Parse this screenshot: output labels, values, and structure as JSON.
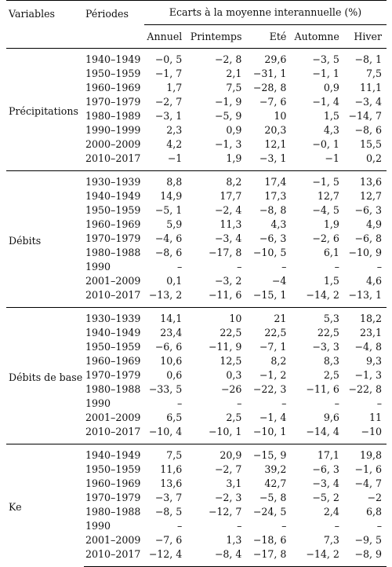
{
  "header": {
    "col_variable": "Variables",
    "col_period": "Périodes",
    "col_span": "Ecarts à la moyenne interannuelle (%)",
    "seasons": [
      "Annuel",
      "Printemps",
      "Eté",
      "Automne",
      "Hiver"
    ]
  },
  "groups": [
    {
      "name": "Précipitations",
      "rows": [
        {
          "period": "1940–1949",
          "values": [
            "−0, 5",
            "−2, 8",
            "29,6",
            "−3, 5",
            "−8, 1"
          ]
        },
        {
          "period": "1950–1959",
          "values": [
            "−1, 7",
            "2,1",
            "−31, 1",
            "−1, 1",
            "7,5"
          ]
        },
        {
          "period": "1960–1969",
          "values": [
            "1,7",
            "7,5",
            "−28, 8",
            "0,9",
            "11,1"
          ]
        },
        {
          "period": "1970–1979",
          "values": [
            "−2, 7",
            "−1, 9",
            "−7, 6",
            "−1, 4",
            "−3, 4"
          ]
        },
        {
          "period": "1980–1989",
          "values": [
            "−3, 1",
            "−5, 9",
            "10",
            "1,5",
            "−14, 7"
          ]
        },
        {
          "period": "1990–1999",
          "values": [
            "2,3",
            "0,9",
            "20,3",
            "4,3",
            "−8, 6"
          ]
        },
        {
          "period": "2000–2009",
          "values": [
            "4,2",
            "−1, 3",
            "12,1",
            "−0, 1",
            "15,5"
          ]
        },
        {
          "period": "2010–2017",
          "values": [
            "−1",
            "1,9",
            "−3, 1",
            "−1",
            "0,2"
          ]
        }
      ]
    },
    {
      "name": "Débits",
      "rows": [
        {
          "period": "1930–1939",
          "values": [
            "8,8",
            "8,2",
            "17,4",
            "−1, 5",
            "13,6"
          ]
        },
        {
          "period": "1940–1949",
          "values": [
            "14,9",
            "17,7",
            "17,3",
            "12,7",
            "12,7"
          ]
        },
        {
          "period": "1950–1959",
          "values": [
            "−5, 1",
            "−2, 4",
            "−8, 8",
            "−4, 5",
            "−6, 3"
          ]
        },
        {
          "period": "1960–1969",
          "values": [
            "5,9",
            "11,3",
            "4,3",
            "1,9",
            "4,9"
          ]
        },
        {
          "period": "1970–1979",
          "values": [
            "−4, 6",
            "−3, 4",
            "−6, 3",
            "−2, 6",
            "−6, 8"
          ]
        },
        {
          "period": "1980–1988",
          "values": [
            "−8, 6",
            "−17, 8",
            "−10, 5",
            "6,1",
            "−10, 9"
          ]
        },
        {
          "period": "1990",
          "values": [
            "–",
            "–",
            "–",
            "–",
            "–"
          ]
        },
        {
          "period": "2001–2009",
          "values": [
            "0,1",
            "−3, 2",
            "−4",
            "1,5",
            "4,6"
          ]
        },
        {
          "period": "2010–2017",
          "values": [
            "−13, 2",
            "−11, 6",
            "−15, 1",
            "−14, 2",
            "−13, 1"
          ]
        }
      ]
    },
    {
      "name": "Débits de base",
      "rows": [
        {
          "period": "1930–1939",
          "values": [
            "14,1",
            "10",
            "21",
            "5,3",
            "18,2"
          ]
        },
        {
          "period": "1940–1949",
          "values": [
            "23,4",
            "22,5",
            "22,5",
            "22,5",
            "23,1"
          ]
        },
        {
          "period": "1950–1959",
          "values": [
            "−6, 6",
            "−11, 9",
            "−7, 1",
            "−3, 3",
            "−4, 8"
          ]
        },
        {
          "period": "1960–1969",
          "values": [
            "10,6",
            "12,5",
            "8,2",
            "8,3",
            "9,3"
          ]
        },
        {
          "period": "1970–1979",
          "values": [
            "0,6",
            "0,3",
            "−1, 2",
            "2,5",
            "−1, 3"
          ]
        },
        {
          "period": "1980–1988",
          "values": [
            "−33, 5",
            "−26",
            "−22, 3",
            "−11, 6",
            "−22, 8"
          ]
        },
        {
          "period": "1990",
          "values": [
            "–",
            "–",
            "–",
            "–",
            "–"
          ]
        },
        {
          "period": "2001–2009",
          "values": [
            "6,5",
            "2,5",
            "−1, 4",
            "9,6",
            "11"
          ]
        },
        {
          "period": "2010–2017",
          "values": [
            "−10, 4",
            "−10, 1",
            "−10, 1",
            "−14, 4",
            "−10"
          ]
        }
      ]
    },
    {
      "name": "Ke",
      "rows": [
        {
          "period": "1940–1949",
          "values": [
            "7,5",
            "20,9",
            "−15, 9",
            "17,1",
            "19,8"
          ]
        },
        {
          "period": "1950–1959",
          "values": [
            "11,6",
            "−2, 7",
            "39,2",
            "−6, 3",
            "−1, 6"
          ]
        },
        {
          "period": "1960–1969",
          "values": [
            "13,6",
            "3,1",
            "42,7",
            "−3, 4",
            "−4, 7"
          ]
        },
        {
          "period": "1970–1979",
          "values": [
            "−3, 7",
            "−2, 3",
            "−5, 8",
            "−5, 2",
            "−2"
          ]
        },
        {
          "period": "1980–1988",
          "values": [
            "−8, 5",
            "−12, 7",
            "−24, 5",
            "2,4",
            "6,8"
          ]
        },
        {
          "period": "1990",
          "values": [
            "–",
            "–",
            "–",
            "–",
            "–"
          ]
        },
        {
          "period": "2001–2009",
          "values": [
            "−7, 6",
            "1,3",
            "−18, 6",
            "7,3",
            "−9, 5"
          ]
        },
        {
          "period": "2010–2017",
          "values": [
            "−12, 4",
            "−8, 4",
            "−17, 8",
            "−14, 2",
            "−8, 9"
          ]
        }
      ]
    }
  ]
}
